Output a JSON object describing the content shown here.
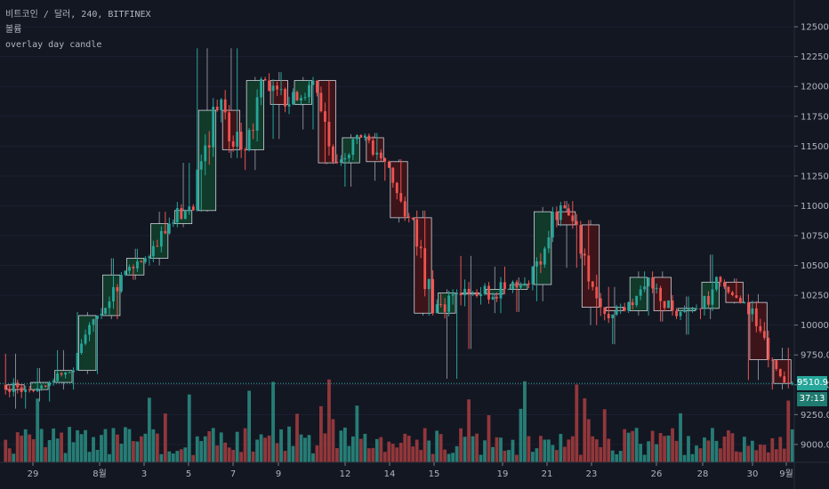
{
  "legend": {
    "symbol_line": "비트코인 / 달러, 240, BITFINEX",
    "indicator_1": "볼륨",
    "indicator_2": "overlay day candle"
  },
  "colors": {
    "background": "#131722",
    "up": "#26a69a",
    "down": "#ef5350",
    "up_volume": "#2a8f84",
    "down_volume": "#a83d3f",
    "day_box_up_fill": "#113a2a",
    "day_box_down_fill": "#3d1419",
    "day_box_border": "#d1d4dc",
    "axis_text": "#b2b5be",
    "last_price_line": "#26a69a"
  },
  "price_tag": {
    "value": "9510.9",
    "countdown": "37:13"
  },
  "chart_data": {
    "type": "candlestick",
    "title": "",
    "xlabel": "",
    "ylabel": "",
    "ylim": [
      8850,
      12650
    ],
    "price_ticks": [
      9000,
      9250,
      9500,
      9750,
      10000,
      10250,
      10500,
      10750,
      11000,
      11250,
      11500,
      11750,
      12000,
      12250,
      12500
    ],
    "price_tick_labels": [
      "9000.0",
      "9250.0",
      "9500.0",
      "9750.0",
      "10000.0",
      "10250.0",
      "10500.0",
      "10750.0",
      "11000.0",
      "11250.0",
      "11500.0",
      "11750.0",
      "12000.0",
      "12250.0",
      "12500.0"
    ],
    "x_ticks": [
      "29",
      "8월",
      "3",
      "5",
      "7",
      "9",
      "12",
      "14",
      "15",
      "19",
      "21",
      "23",
      "26",
      "28",
      "30",
      "9월"
    ],
    "grid": true,
    "last_price": 9510.9,
    "daily_candles": [
      {
        "o": 9500,
        "h": 9760,
        "l": 9300,
        "c": 9460
      },
      {
        "o": 9460,
        "h": 9640,
        "l": 9360,
        "c": 9520
      },
      {
        "o": 9520,
        "h": 9790,
        "l": 9460,
        "c": 9620
      },
      {
        "o": 9620,
        "h": 10110,
        "l": 9590,
        "c": 10080
      },
      {
        "o": 10080,
        "h": 10560,
        "l": 10050,
        "c": 10420
      },
      {
        "o": 10420,
        "h": 10640,
        "l": 10380,
        "c": 10560
      },
      {
        "o": 10560,
        "h": 10950,
        "l": 10500,
        "c": 10850
      },
      {
        "o": 10850,
        "h": 11360,
        "l": 10820,
        "c": 10960
      },
      {
        "o": 10960,
        "h": 12320,
        "l": 10950,
        "c": 11800
      },
      {
        "o": 11800,
        "h": 12320,
        "l": 11400,
        "c": 11470
      },
      {
        "o": 11470,
        "h": 12080,
        "l": 11300,
        "c": 12050
      },
      {
        "o": 12050,
        "h": 12120,
        "l": 11560,
        "c": 11850
      },
      {
        "o": 11850,
        "h": 12080,
        "l": 11640,
        "c": 12050
      },
      {
        "o": 12050,
        "h": 12050,
        "l": 11350,
        "c": 11360
      },
      {
        "o": 11360,
        "h": 11600,
        "l": 11160,
        "c": 11570
      },
      {
        "o": 11570,
        "h": 11610,
        "l": 11210,
        "c": 11370
      },
      {
        "o": 11370,
        "h": 11390,
        "l": 10860,
        "c": 10900
      },
      {
        "o": 10900,
        "h": 10960,
        "l": 10080,
        "c": 10100
      },
      {
        "o": 10100,
        "h": 10300,
        "l": 9550,
        "c": 10270
      },
      {
        "o": 10270,
        "h": 10580,
        "l": 9800,
        "c": 10260
      },
      {
        "o": 10260,
        "h": 10490,
        "l": 10100,
        "c": 10300
      },
      {
        "o": 10300,
        "h": 10400,
        "l": 10110,
        "c": 10340
      },
      {
        "o": 10340,
        "h": 10990,
        "l": 10200,
        "c": 10950
      },
      {
        "o": 10950,
        "h": 11040,
        "l": 10480,
        "c": 10840
      },
      {
        "o": 10840,
        "h": 10880,
        "l": 10000,
        "c": 10150
      },
      {
        "o": 10150,
        "h": 10320,
        "l": 9840,
        "c": 10120
      },
      {
        "o": 10120,
        "h": 10450,
        "l": 10080,
        "c": 10400
      },
      {
        "o": 10400,
        "h": 10450,
        "l": 10030,
        "c": 10120
      },
      {
        "o": 10120,
        "h": 10240,
        "l": 9920,
        "c": 10140
      },
      {
        "o": 10140,
        "h": 10590,
        "l": 10050,
        "c": 10360
      },
      {
        "o": 10360,
        "h": 10390,
        "l": 10180,
        "c": 10190
      },
      {
        "o": 10190,
        "h": 10260,
        "l": 9540,
        "c": 9710
      },
      {
        "o": 9710,
        "h": 9810,
        "l": 9460,
        "c": 9510.9
      }
    ]
  }
}
